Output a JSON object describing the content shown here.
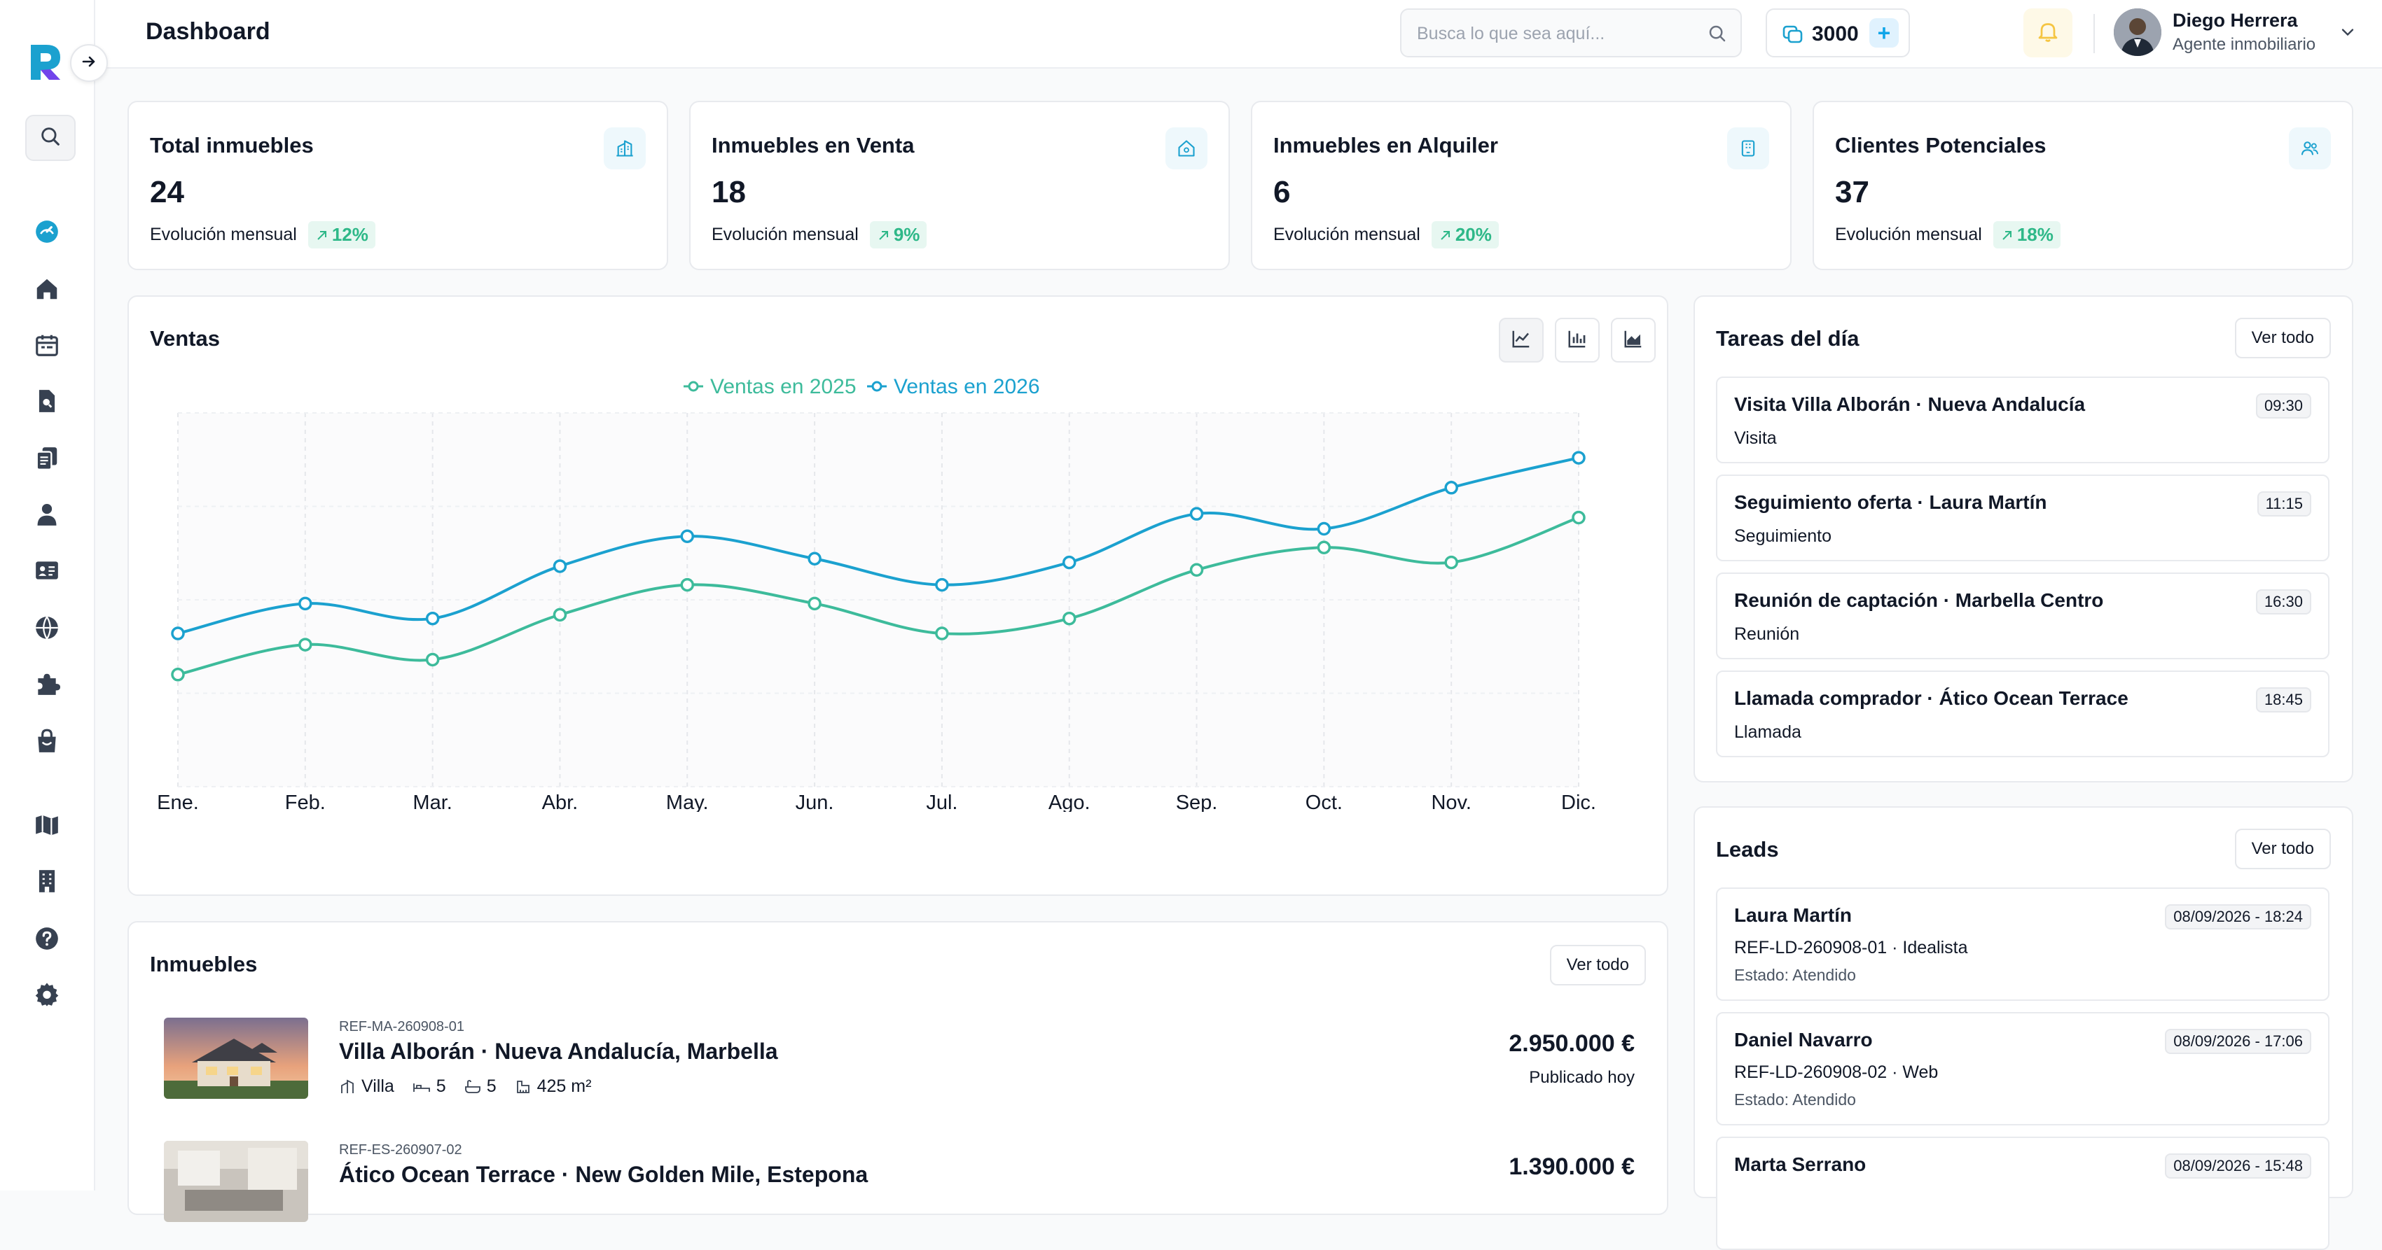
{
  "app": {
    "page_title": "Dashboard"
  },
  "header": {
    "search_placeholder": "Busca lo que sea aquí...",
    "credits": "3000",
    "user": {
      "name": "Diego Herrera",
      "role": "Agente inmobiliario"
    }
  },
  "sidebar": {
    "icons": [
      "dashboard-icon",
      "home-icon",
      "calendar-icon",
      "document-search-icon",
      "documents-icon",
      "user-icon",
      "id-card-icon",
      "globe-icon",
      "puzzle-icon",
      "shopping-bag-icon",
      "map-icon",
      "building-icon",
      "help-icon",
      "gear-icon"
    ]
  },
  "stats": [
    {
      "title": "Total inmuebles",
      "value": "24",
      "foot": "Evolución mensual",
      "trend": "12%",
      "icon": "building-icon"
    },
    {
      "title": "Inmuebles en Venta",
      "value": "18",
      "foot": "Evolución mensual",
      "trend": "9%",
      "icon": "home-icon"
    },
    {
      "title": "Inmuebles en Alquiler",
      "value": "6",
      "foot": "Evolución mensual",
      "trend": "20%",
      "icon": "office-icon"
    },
    {
      "title": "Clientes Potenciales",
      "value": "37",
      "foot": "Evolución mensual",
      "trend": "18%",
      "icon": "users-icon"
    }
  ],
  "sales": {
    "title": "Ventas"
  },
  "chart_data": {
    "type": "line",
    "title": "Ventas",
    "categories": [
      "Ene.",
      "Feb.",
      "Mar.",
      "Abr.",
      "May.",
      "Jun.",
      "Jul.",
      "Ago.",
      "Sep.",
      "Oct.",
      "Nov.",
      "Dic."
    ],
    "series": [
      {
        "name": "Ventas en 2025",
        "color": "#3dbb9b",
        "values": [
          30,
          38,
          34,
          46,
          54,
          49,
          41,
          45,
          58,
          64,
          60,
          72
        ]
      },
      {
        "name": "Ventas en 2026",
        "color": "#1ba1cf",
        "values": [
          41,
          49,
          45,
          59,
          67,
          61,
          54,
          60,
          73,
          69,
          80,
          88
        ]
      }
    ],
    "ylim": [
      0,
      100
    ],
    "grid": true,
    "legend": "top-center"
  },
  "tasks": {
    "title": "Tareas del día",
    "view_all": "Ver todo",
    "items": [
      {
        "title": "Visita Villa Alborán · Nueva Andalucía",
        "type": "Visita",
        "time": "09:30"
      },
      {
        "title": "Seguimiento oferta · Laura Martín",
        "type": "Seguimiento",
        "time": "11:15"
      },
      {
        "title": "Reunión de captación · Marbella Centro",
        "type": "Reunión",
        "time": "16:30"
      },
      {
        "title": "Llamada comprador · Ático Ocean Terrace",
        "type": "Llamada",
        "time": "18:45"
      }
    ]
  },
  "leads": {
    "title": "Leads",
    "view_all": "Ver todo",
    "items": [
      {
        "name": "Laura Martín",
        "ref": "REF-LD-260908-01 · Idealista",
        "status": "Estado: Atendido",
        "date": "08/09/2026 - 18:24"
      },
      {
        "name": "Daniel Navarro",
        "ref": "REF-LD-260908-02 · Web",
        "status": "Estado: Atendido",
        "date": "08/09/2026 - 17:06"
      },
      {
        "name": "Marta Serrano",
        "ref": "",
        "status": "",
        "date": "08/09/2026 - 15:48"
      }
    ]
  },
  "properties": {
    "title": "Inmuebles",
    "view_all": "Ver todo",
    "items": [
      {
        "ref": "REF-MA-260908-01",
        "title": "Villa Alborán · Nueva Andalucía, Marbella",
        "type": "Villa",
        "beds": "5",
        "baths": "5",
        "area": "425 m²",
        "price": "2.950.000 €",
        "published": "Publicado hoy"
      },
      {
        "ref": "REF-ES-260907-02",
        "title": "Ático Ocean Terrace · New Golden Mile, Estepona",
        "price": "1.390.000 €"
      }
    ]
  }
}
